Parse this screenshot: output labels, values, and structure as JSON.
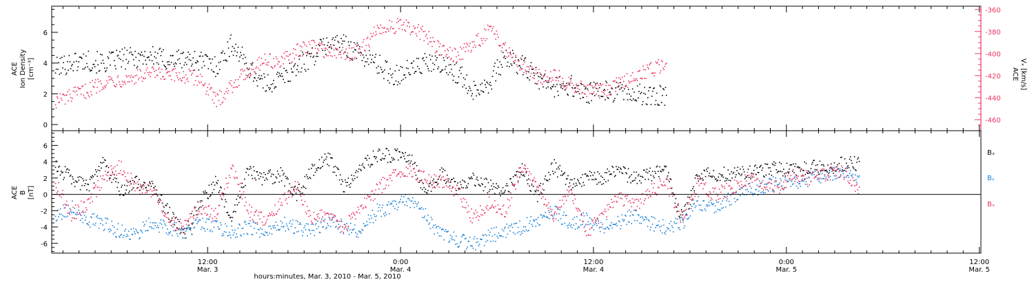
{
  "page": {
    "xlabel": "hours:minutes, Mar.  3, 2010 - Mar.  5, 2010",
    "x_ticks": [
      {
        "t": 12,
        "line1": "12:00",
        "line2": "Mar. 3"
      },
      {
        "t": 24,
        "line1": "0:00",
        "line2": "Mar. 4"
      },
      {
        "t": 36,
        "line1": "12:00",
        "line2": "Mar. 4"
      },
      {
        "t": 48,
        "line1": "0:00",
        "line2": "Mar. 5"
      },
      {
        "t": 60,
        "line1": "12:00",
        "line2": "Mar. 5"
      }
    ]
  },
  "colors": {
    "axis": "#000000",
    "density": "#000000",
    "velocity": "#e8335f",
    "bx": "#000000",
    "by": "#1a7fd4",
    "bz": "#e8335f"
  },
  "chart_data": [
    {
      "type": "scatter",
      "panel": "top",
      "x_unit": "hours from Mar. 3, 2010 00:00",
      "xlim": [
        2.3,
        60.1
      ],
      "ylabel_lines": [
        "ACE",
        "Ion Density",
        "[cm⁻³]"
      ],
      "ylim": [
        -0.4,
        7.7
      ],
      "y_ticks": [
        0,
        2,
        4,
        6
      ],
      "ylabel_right_lines": [
        "ACE",
        "Vₓ [km/s]"
      ],
      "ylim_right": [
        -470,
        -357
      ],
      "y_ticks_right": [
        -360,
        -380,
        -400,
        -420,
        -440,
        -460
      ],
      "series": [
        {
          "axis": "left",
          "color_key": "density",
          "x": [
            2.5,
            3.5,
            4.5,
            5.5,
            6.5,
            7.5,
            8.5,
            9.5,
            10.5,
            11.5,
            12.5,
            13.5,
            14.5,
            15.5,
            16.5,
            17.5,
            18.5,
            19.5,
            20.5,
            21.5,
            22.5,
            23.5,
            24.5,
            25.5,
            26.5,
            27.5,
            28.5,
            29.5,
            30.5,
            31.5,
            32.5,
            33.5,
            34.5,
            35.5,
            36.5,
            37.5,
            38.5,
            39.5,
            40.5
          ],
          "y": [
            3.7,
            4.1,
            4.2,
            4.0,
            4.3,
            4.4,
            4.5,
            4.2,
            4.3,
            4.2,
            3.8,
            5.3,
            3.8,
            2.6,
            3.0,
            3.8,
            4.5,
            5.4,
            5.2,
            4.6,
            4.0,
            3.2,
            3.6,
            4.0,
            3.9,
            3.4,
            2.3,
            2.8,
            4.4,
            3.9,
            3.0,
            2.5,
            2.6,
            2.0,
            2.2,
            2.2,
            2.0,
            1.9,
            1.9
          ]
        },
        {
          "axis": "right",
          "color_key": "velocity",
          "x": [
            2.5,
            3.5,
            4.5,
            5.5,
            6.5,
            7.5,
            8.5,
            9.5,
            10.5,
            11.5,
            12.5,
            13.5,
            14.5,
            15.5,
            16.5,
            17.5,
            18.5,
            19.5,
            20.5,
            21.5,
            22.5,
            23.5,
            24.5,
            25.5,
            26.5,
            27.5,
            28.5,
            29.5,
            30.5,
            31.5,
            32.5,
            33.5,
            34.5,
            35.5,
            36.5,
            37.5,
            38.5,
            39.5,
            40.5
          ],
          "y": [
            -443,
            -438,
            -433,
            -425,
            -423,
            -421,
            -418,
            -420,
            -420,
            -422,
            -443,
            -428,
            -415,
            -405,
            -408,
            -398,
            -392,
            -398,
            -400,
            -397,
            -378,
            -374,
            -376,
            -383,
            -397,
            -401,
            -392,
            -378,
            -395,
            -409,
            -421,
            -418,
            -428,
            -432,
            -434,
            -428,
            -420,
            -414,
            -409
          ]
        }
      ]
    },
    {
      "type": "scatter",
      "panel": "bottom",
      "x_unit": "hours from Mar. 3, 2010 00:00",
      "xlim": [
        2.3,
        60.1
      ],
      "ylabel_lines": [
        "ACE",
        "B",
        "[nT]"
      ],
      "ylim": [
        -7.2,
        7.8
      ],
      "y_ticks": [
        -6,
        -4,
        -2,
        0,
        2,
        4,
        6
      ],
      "zero_line": true,
      "legend": {
        "placement": "right",
        "entries": [
          {
            "label": "Bₓ",
            "color_key": "bx"
          },
          {
            "label": "Bᵧ",
            "color_key": "by"
          },
          {
            "label": "Bₓ",
            "color_key": "bz"
          }
        ]
      },
      "series": [
        {
          "name": "Bₓ",
          "color_key": "bx",
          "x": [
            2.5,
            3.5,
            4.5,
            5.5,
            6.5,
            7.5,
            8.5,
            9.5,
            10.5,
            11.5,
            12.5,
            13.5,
            14.5,
            15.5,
            16.5,
            17.5,
            18.5,
            19.5,
            20.5,
            21.5,
            22.5,
            23.5,
            24.5,
            25.5,
            26.5,
            27.5,
            28.5,
            29.5,
            30.5,
            31.5,
            32.5,
            33.5,
            34.5,
            35.5,
            36.5,
            37.5,
            38.5,
            39.5,
            40.5,
            41.5,
            42.5,
            43.5,
            44.5,
            45.5,
            46.5,
            47.5,
            48.5,
            49.5,
            50.5,
            51.5,
            52.5
          ],
          "y": [
            3.5,
            2.0,
            1.0,
            3.8,
            0.5,
            1.5,
            1.0,
            -2.0,
            -5.0,
            -1.0,
            1.5,
            -3.0,
            3.0,
            2.0,
            2.5,
            0.0,
            3.0,
            4.5,
            1.0,
            3.5,
            4.8,
            4.9,
            4.8,
            0.5,
            2.5,
            1.0,
            2.0,
            1.0,
            0.5,
            3.0,
            0.0,
            3.5,
            1.5,
            2.0,
            2.0,
            3.0,
            2.0,
            2.5,
            3.0,
            -3.0,
            2.5,
            2.5,
            2.5,
            2.8,
            3.0,
            3.2,
            3.0,
            3.5,
            3.2,
            3.8,
            3.9
          ]
        },
        {
          "name": "Bᵧ",
          "color_key": "by",
          "x": [
            2.5,
            3.5,
            4.5,
            5.5,
            6.5,
            7.5,
            8.5,
            9.5,
            10.5,
            11.5,
            12.5,
            13.5,
            14.5,
            15.5,
            16.5,
            17.5,
            18.5,
            19.5,
            20.5,
            21.5,
            22.5,
            23.5,
            24.5,
            25.5,
            26.5,
            27.5,
            28.5,
            29.5,
            30.5,
            31.5,
            32.5,
            33.5,
            34.5,
            35.5,
            36.5,
            37.5,
            38.5,
            39.5,
            40.5,
            41.5,
            42.5,
            43.5,
            44.5,
            45.5,
            46.5,
            47.5,
            48.5,
            49.5,
            50.5,
            51.5,
            52.5
          ],
          "y": [
            -2.5,
            -1.5,
            -3.0,
            -3.5,
            -4.5,
            -4.8,
            -3.5,
            -4.0,
            -4.5,
            -3.5,
            -4.0,
            -4.5,
            -4.0,
            -4.5,
            -3.5,
            -4.0,
            -4.5,
            -3.0,
            -4.0,
            -4.5,
            -2.0,
            -1.5,
            -0.5,
            -2.5,
            -5.0,
            -5.5,
            -6.0,
            -5.0,
            -4.5,
            -4.0,
            -3.0,
            -2.0,
            -3.5,
            -3.0,
            -4.0,
            -3.5,
            -2.5,
            -3.5,
            -4.0,
            -3.5,
            -1.0,
            -1.5,
            -0.5,
            0.5,
            1.0,
            1.5,
            1.5,
            2.0,
            2.5,
            3.0,
            2.0
          ]
        },
        {
          "name": "Bₓ",
          "color_key": "bz",
          "x": [
            2.5,
            3.5,
            4.5,
            5.5,
            6.5,
            7.5,
            8.5,
            9.5,
            10.5,
            11.5,
            12.5,
            13.5,
            14.5,
            15.5,
            16.5,
            17.5,
            18.5,
            19.5,
            20.5,
            21.5,
            22.5,
            23.5,
            24.5,
            25.5,
            26.5,
            27.5,
            28.5,
            29.5,
            30.5,
            31.5,
            32.5,
            33.5,
            34.5,
            35.5,
            36.5,
            37.5,
            38.5,
            39.5,
            40.5,
            41.5,
            42.5,
            43.5,
            44.5,
            45.5,
            46.5,
            47.5,
            48.5,
            49.5,
            50.5,
            51.5,
            52.5
          ],
          "y": [
            1.5,
            -2.5,
            -1.0,
            2.0,
            3.5,
            1.0,
            0.5,
            -3.0,
            -4.0,
            -1.5,
            -2.5,
            3.5,
            -2.0,
            -3.0,
            -1.0,
            1.0,
            -3.0,
            -2.0,
            -4.0,
            -1.5,
            0.5,
            2.5,
            3.0,
            2.0,
            1.5,
            0.5,
            -3.0,
            -1.0,
            -2.0,
            3.5,
            1.0,
            -2.5,
            0.5,
            -4.5,
            -3.0,
            0.0,
            -1.5,
            0.5,
            1.5,
            -3.0,
            1.5,
            0.0,
            0.8,
            2.0,
            1.5,
            1.0,
            2.5,
            2.0,
            2.5,
            2.8,
            0.5
          ]
        }
      ]
    }
  ]
}
